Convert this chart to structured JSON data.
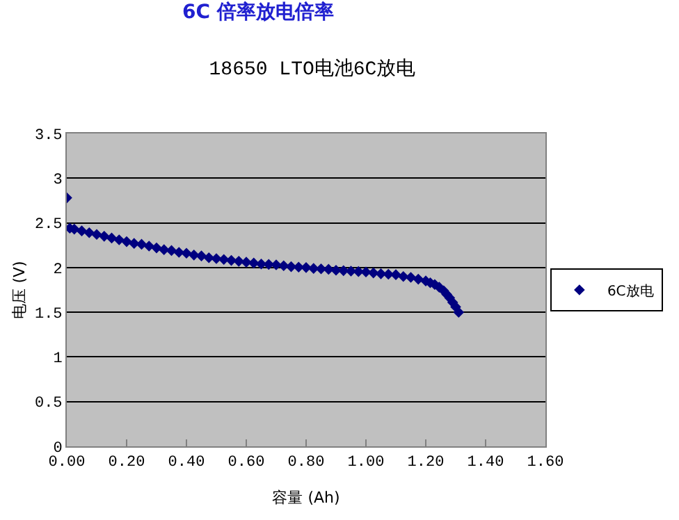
{
  "chart_data": {
    "type": "scatter",
    "title": "18650 LTO电池6C放电",
    "subtitle": "6C 倍率放电倍率",
    "xlabel": "容量 (Ah)",
    "ylabel": "电压 (V)",
    "x": [
      0,
      0.01,
      0.025,
      0.05,
      0.075,
      0.1,
      0.125,
      0.15,
      0.175,
      0.2,
      0.225,
      0.25,
      0.275,
      0.3,
      0.325,
      0.35,
      0.375,
      0.4,
      0.425,
      0.45,
      0.475,
      0.5,
      0.525,
      0.55,
      0.575,
      0.6,
      0.625,
      0.65,
      0.675,
      0.7,
      0.725,
      0.75,
      0.775,
      0.8,
      0.825,
      0.85,
      0.875,
      0.9,
      0.925,
      0.95,
      0.975,
      1.0,
      1.025,
      1.05,
      1.075,
      1.1,
      1.125,
      1.15,
      1.175,
      1.2,
      1.215,
      1.23,
      1.245,
      1.26,
      1.27,
      1.28,
      1.29,
      1.3,
      1.31
    ],
    "series": [
      {
        "name": "6C放电",
        "color": "#000080",
        "values": [
          2.78,
          2.44,
          2.43,
          2.41,
          2.39,
          2.37,
          2.35,
          2.33,
          2.31,
          2.29,
          2.27,
          2.26,
          2.24,
          2.22,
          2.2,
          2.19,
          2.17,
          2.16,
          2.14,
          2.13,
          2.11,
          2.1,
          2.09,
          2.08,
          2.07,
          2.06,
          2.05,
          2.04,
          2.035,
          2.03,
          2.02,
          2.01,
          2.005,
          2.0,
          1.99,
          1.985,
          1.98,
          1.97,
          1.965,
          1.96,
          1.955,
          1.95,
          1.94,
          1.93,
          1.925,
          1.92,
          1.9,
          1.89,
          1.87,
          1.85,
          1.83,
          1.81,
          1.78,
          1.74,
          1.7,
          1.66,
          1.61,
          1.56,
          1.5
        ]
      }
    ],
    "xlim": [
      0,
      1.6
    ],
    "xticks": [
      {
        "value": 0,
        "label": "0.00"
      },
      {
        "value": 0.2,
        "label": "0.20"
      },
      {
        "value": 0.4,
        "label": "0.40"
      },
      {
        "value": 0.6,
        "label": "0.60"
      },
      {
        "value": 0.8,
        "label": "0.80"
      },
      {
        "value": 1.0,
        "label": "1.00"
      },
      {
        "value": 1.2,
        "label": "1.20"
      },
      {
        "value": 1.4,
        "label": "1.40"
      },
      {
        "value": 1.6,
        "label": "1.60"
      }
    ],
    "ylim": [
      0,
      3.5
    ],
    "yticks": [
      0,
      0.5,
      1,
      1.5,
      2,
      2.5,
      3,
      3.5
    ],
    "grid": "y",
    "legend": "right",
    "marker": "diamond"
  }
}
